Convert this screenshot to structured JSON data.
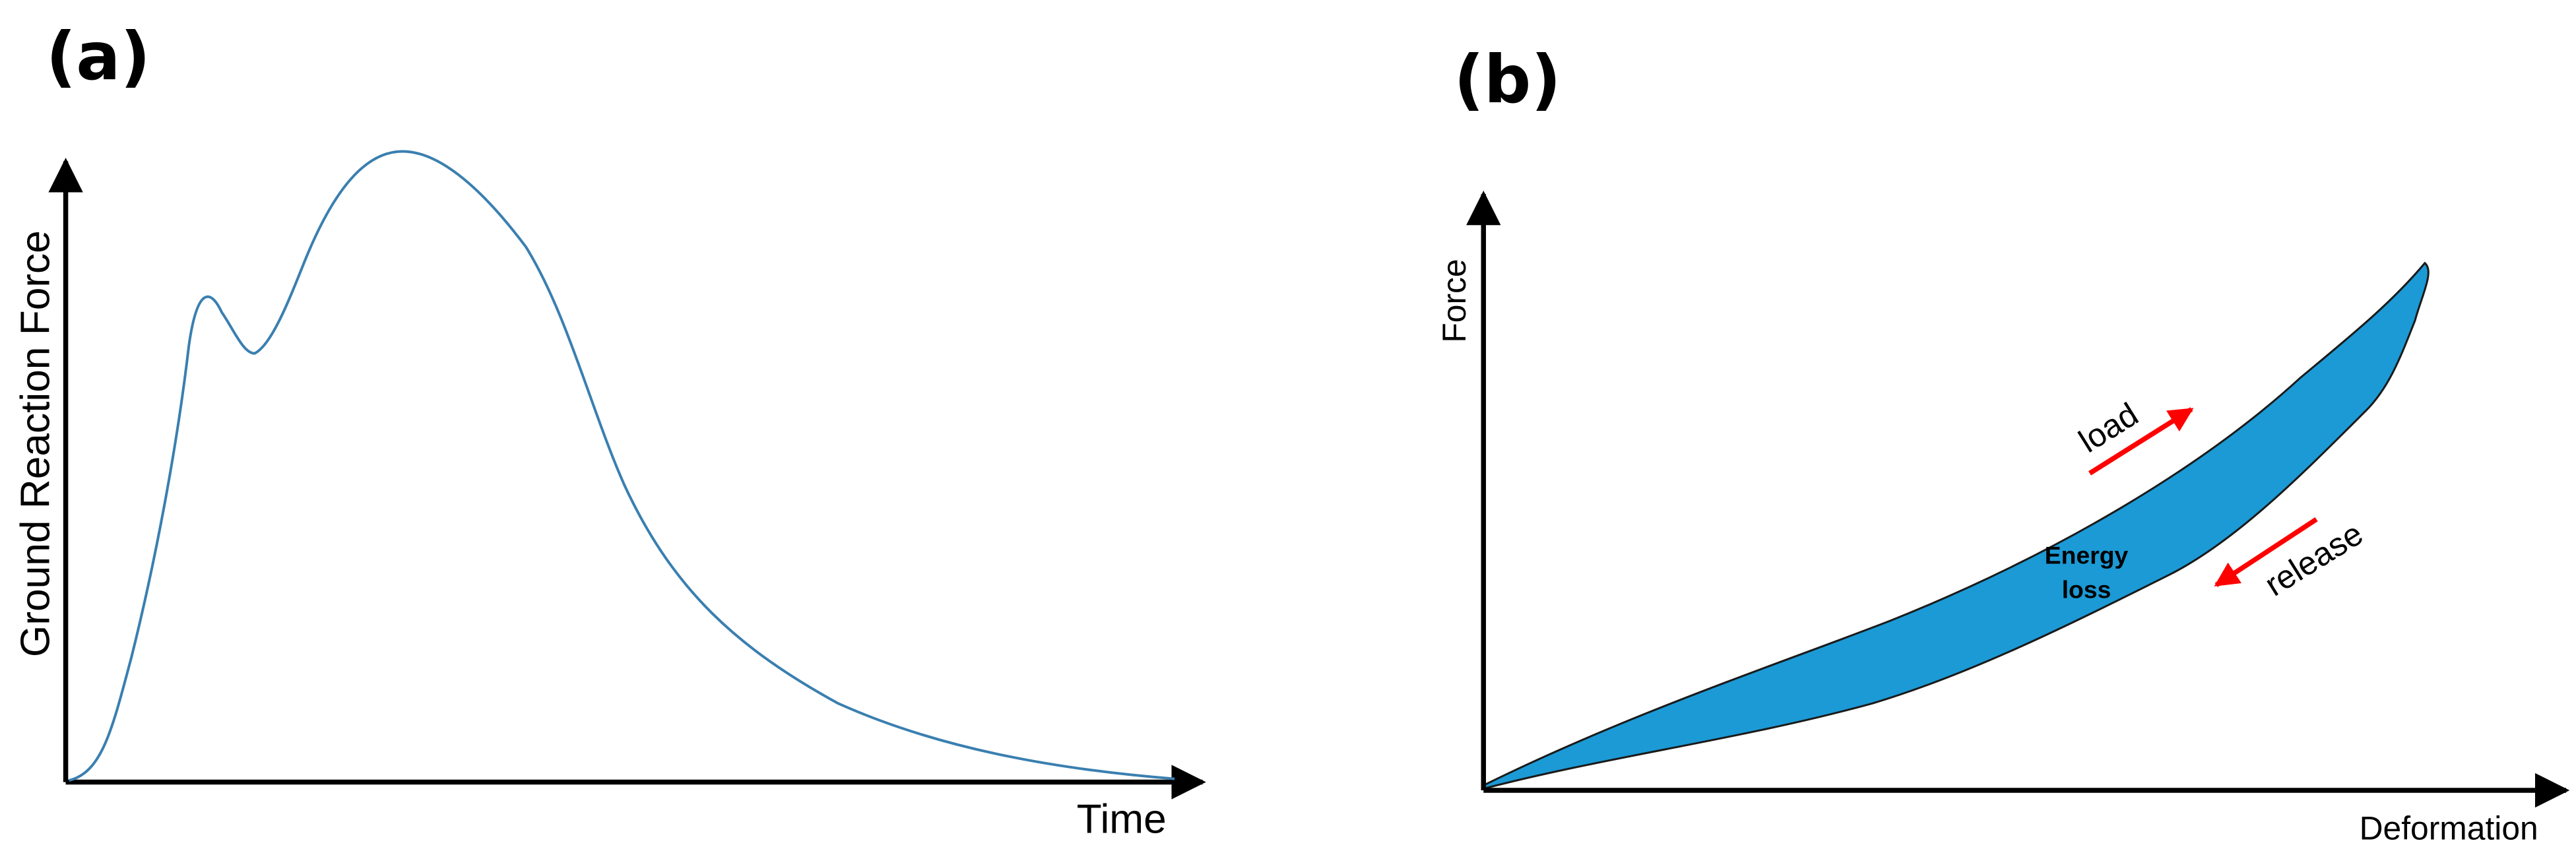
{
  "panels": [
    {
      "label": "(a)",
      "y_axis": "Ground Reaction Force",
      "x_axis": "Time"
    },
    {
      "label": "(b)",
      "y_axis": "Force",
      "x_axis": "Deformation",
      "region_label": [
        "Energy",
        "loss"
      ],
      "annotations": [
        "load",
        "release"
      ]
    }
  ]
}
